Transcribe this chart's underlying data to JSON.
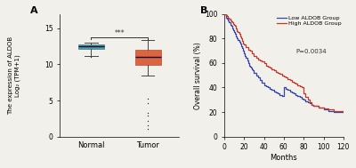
{
  "panel_A": {
    "normal_box": {
      "median": 12.5,
      "q1": 12.2,
      "q3": 12.75,
      "whisker_low": 11.15,
      "whisker_high": 13.05,
      "outliers": [
        11.05
      ],
      "color": "#3a8fa8",
      "edge_color": "#2a6e85"
    },
    "tumor_box": {
      "median": 11.0,
      "q1": 9.9,
      "q3": 12.05,
      "whisker_low": 8.5,
      "whisker_high": 13.35,
      "outliers": [
        5.3,
        4.6,
        3.3,
        2.9,
        2.2,
        1.6,
        1.1
      ],
      "color": "#d9512c",
      "edge_color": "#b03e1e"
    },
    "sig_text": "***",
    "ylabel_line1": "The expression of ALDOB",
    "ylabel_line2": "Log₂ (TPM+1)",
    "xtick_labels": [
      "Normal",
      "Tumor"
    ],
    "ylim": [
      0,
      17
    ],
    "yticks": [
      0,
      5,
      10,
      15
    ],
    "panel_label": "A"
  },
  "panel_B": {
    "low_group": {
      "times": [
        0,
        2,
        3,
        4,
        5,
        6,
        7,
        8,
        9,
        10,
        11,
        12,
        13,
        14,
        15,
        16,
        17,
        18,
        19,
        20,
        21,
        22,
        23,
        24,
        25,
        26,
        27,
        28,
        29,
        30,
        32,
        34,
        36,
        38,
        40,
        42,
        44,
        46,
        48,
        50,
        52,
        54,
        56,
        58,
        60,
        62,
        64,
        66,
        68,
        70,
        72,
        74,
        76,
        78,
        80,
        82,
        84,
        86,
        88,
        90,
        95,
        100,
        105,
        110,
        120
      ],
      "survival": [
        100,
        97,
        96,
        95,
        93,
        91,
        90,
        88,
        87,
        85,
        84,
        82,
        80,
        79,
        77,
        76,
        74,
        72,
        70,
        68,
        66,
        64,
        62,
        60,
        58,
        57,
        56,
        55,
        54,
        52,
        50,
        48,
        46,
        44,
        42,
        41,
        40,
        39,
        38,
        37,
        36,
        35,
        34,
        33,
        40,
        39,
        38,
        37,
        36,
        35,
        34,
        33,
        32,
        31,
        30,
        29,
        28,
        27,
        26,
        25,
        24,
        22,
        21,
        20,
        20
      ],
      "color": "#3444a8",
      "label": "Low ALDOB Group"
    },
    "high_group": {
      "times": [
        0,
        2,
        3,
        4,
        5,
        6,
        7,
        8,
        9,
        10,
        11,
        12,
        13,
        14,
        15,
        16,
        17,
        18,
        19,
        20,
        22,
        24,
        26,
        28,
        30,
        32,
        34,
        36,
        38,
        40,
        42,
        44,
        46,
        48,
        50,
        52,
        54,
        56,
        58,
        60,
        62,
        64,
        66,
        68,
        70,
        72,
        74,
        76,
        78,
        80,
        82,
        84,
        86,
        88,
        90,
        95,
        100,
        105,
        110,
        120
      ],
      "survival": [
        100,
        99,
        98,
        97,
        96,
        95,
        94,
        93,
        92,
        91,
        90,
        88,
        86,
        85,
        84,
        82,
        80,
        78,
        76,
        75,
        73,
        71,
        70,
        68,
        66,
        64,
        63,
        62,
        61,
        60,
        58,
        57,
        56,
        55,
        54,
        53,
        52,
        51,
        50,
        49,
        48,
        47,
        46,
        45,
        44,
        43,
        42,
        41,
        40,
        35,
        32,
        30,
        28,
        26,
        25,
        24,
        23,
        22,
        21,
        20
      ],
      "color": "#c0392b",
      "label": "High ALDOB Group"
    },
    "pvalue_text": "P=0.0034",
    "xlabel": "Months",
    "ylabel": "Overall survival (%)",
    "xlim": [
      0,
      120
    ],
    "ylim": [
      0,
      100
    ],
    "xticks": [
      0,
      20,
      40,
      60,
      80,
      100,
      120
    ],
    "yticks": [
      0,
      20,
      40,
      60,
      80,
      100
    ],
    "panel_label": "B"
  },
  "background_color": "#f2f0eb"
}
